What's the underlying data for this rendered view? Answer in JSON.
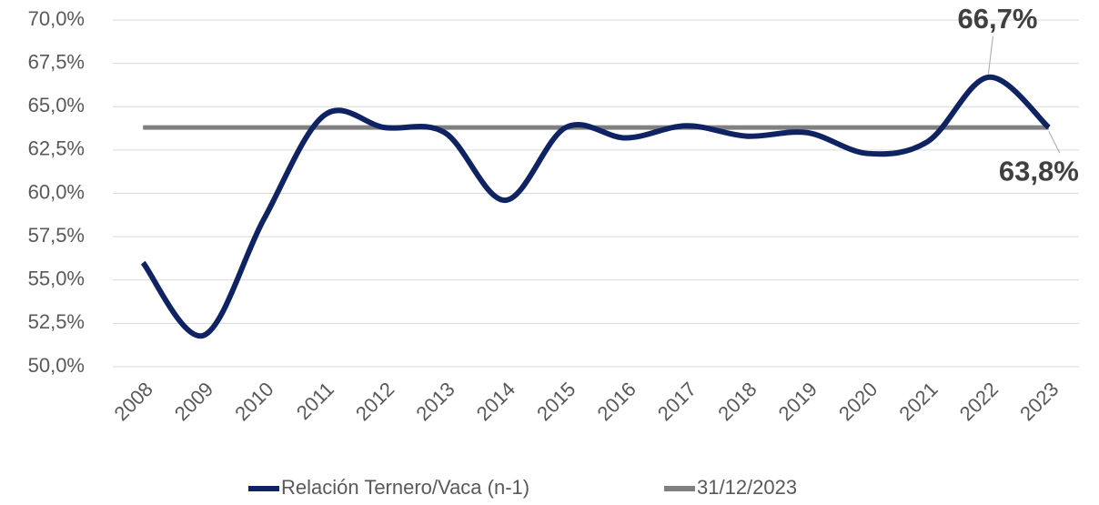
{
  "chart_data": {
    "type": "line",
    "categories": [
      "2008",
      "2009",
      "2010",
      "2011",
      "2012",
      "2013",
      "2014",
      "2015",
      "2016",
      "2017",
      "2018",
      "2019",
      "2020",
      "2021",
      "2022",
      "2023"
    ],
    "series": [
      {
        "name": "Relación Ternero/Vaca (n-1)",
        "color": "#0f2363",
        "values": [
          56.0,
          51.8,
          58.5,
          64.5,
          63.8,
          63.5,
          59.6,
          63.8,
          63.2,
          63.9,
          63.3,
          63.5,
          62.3,
          63.0,
          66.7,
          63.8
        ],
        "value_labels": [
          null,
          null,
          null,
          null,
          null,
          null,
          null,
          null,
          null,
          null,
          null,
          null,
          null,
          null,
          "66,7%",
          "63,8%"
        ]
      },
      {
        "name": "31/12/2023",
        "color": "#808080",
        "values": [
          63.8,
          63.8,
          63.8,
          63.8,
          63.8,
          63.8,
          63.8,
          63.8,
          63.8,
          63.8,
          63.8,
          63.8,
          63.8,
          63.8,
          63.8,
          63.8
        ]
      }
    ],
    "ylim": [
      50,
      70
    ],
    "yticks": [
      {
        "value": 50,
        "label": "50,0%"
      },
      {
        "value": 52.5,
        "label": "52,5%"
      },
      {
        "value": 55,
        "label": "55,0%"
      },
      {
        "value": 57.5,
        "label": "57,5%"
      },
      {
        "value": 60,
        "label": "60,0%"
      },
      {
        "value": 62.5,
        "label": "62,5%"
      },
      {
        "value": 65,
        "label": "65,0%"
      },
      {
        "value": 67.5,
        "label": "67,5%"
      },
      {
        "value": 70,
        "label": "70,0%"
      }
    ],
    "grid": true,
    "legend": "bottom",
    "smooth": true
  }
}
